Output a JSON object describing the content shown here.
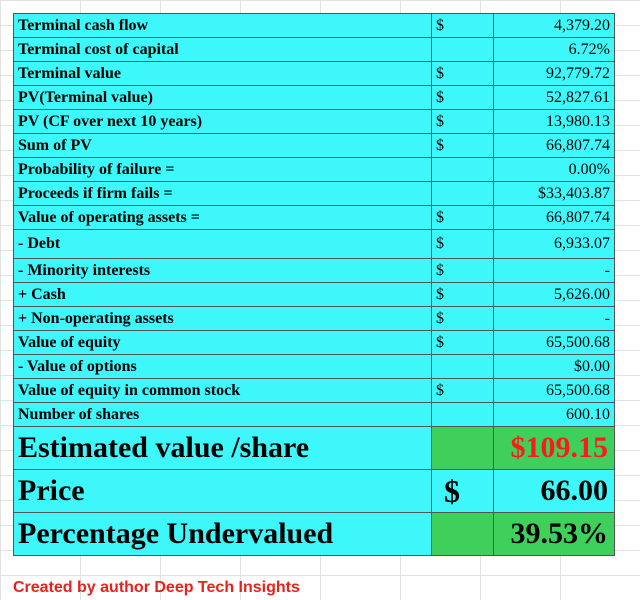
{
  "rows": [
    {
      "label": "Terminal cash flow",
      "currency": "$",
      "value": "4,379.20"
    },
    {
      "label": "Terminal cost of capital",
      "currency": "",
      "value": "6.72%"
    },
    {
      "label": "Terminal value",
      "currency": "$",
      "value": "92,779.72"
    },
    {
      "label": "PV(Terminal value)",
      "currency": "$",
      "value": "52,827.61"
    },
    {
      "label": "PV (CF over next 10 years)",
      "currency": "$",
      "value": "13,980.13"
    },
    {
      "label": "Sum of PV",
      "currency": "$",
      "value": "66,807.74"
    },
    {
      "label": "Probability of failure =",
      "currency": "",
      "value": "0.00%"
    },
    {
      "label": "Proceeds if firm fails =",
      "currency": "",
      "value": "$33,403.87"
    },
    {
      "label": "Value of operating assets =",
      "currency": "$",
      "value": "66,807.74"
    },
    {
      "label": " - Debt",
      "currency": "$",
      "value": "6,933.07"
    },
    {
      "label": " - Minority interests",
      "currency": "$",
      "value": "-"
    },
    {
      "label": " +  Cash",
      "currency": "$",
      "value": "5,626.00"
    },
    {
      "label": " + Non-operating assets",
      "currency": "$",
      "value": "-"
    },
    {
      "label": "Value of equity",
      "currency": "$",
      "value": "65,500.68"
    },
    {
      "label": " - Value of options",
      "currency": "",
      "value": "$0.00"
    },
    {
      "label": "Value of equity in common stock",
      "currency": "$",
      "value": "65,500.68"
    },
    {
      "label": "Number of shares",
      "currency": "",
      "value": "600.10"
    },
    {
      "label": "Estimated value /share",
      "currency": "",
      "value": "$109.15"
    },
    {
      "label": "Price",
      "currency": "$",
      "value": "66.00"
    },
    {
      "label": "Percentage Undervalued",
      "currency": "",
      "value": "39.53%"
    }
  ],
  "credit": "Created by author Deep Tech Insights",
  "colors": {
    "cell_background": "#3df7fa",
    "highlight_green": "#3ed05a",
    "value_red": "#ff1a1a",
    "credit_red": "#e8221b"
  }
}
